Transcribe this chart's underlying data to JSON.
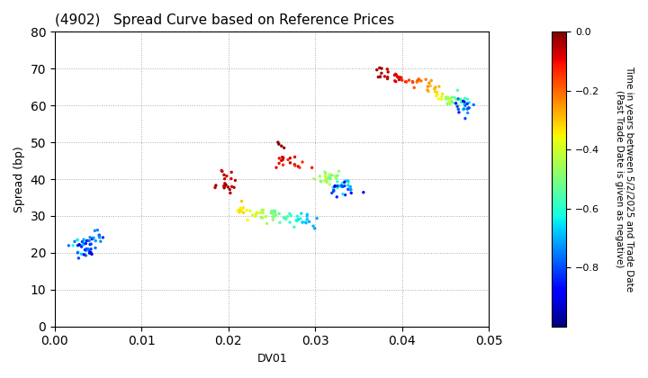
{
  "title": "(4902)   Spread Curve based on Reference Prices",
  "xlabel": "DV01",
  "ylabel": "Spread (bp)",
  "colorbar_label": "Time in years between 5/2/2025 and Trade Date\n(Past Trade Date is given as negative)",
  "clim": [
    -1.0,
    0.0
  ],
  "xlim": [
    0.0,
    0.05
  ],
  "ylim": [
    0,
    80
  ],
  "xticks": [
    0.0,
    0.01,
    0.02,
    0.03,
    0.04,
    0.05
  ],
  "yticks": [
    0,
    10,
    20,
    30,
    40,
    50,
    60,
    70,
    80
  ],
  "colormap": "jet",
  "marker_size": 6,
  "background_color": "#ffffff",
  "grid_color": "#aaaaaa",
  "grid_linestyle": ":"
}
